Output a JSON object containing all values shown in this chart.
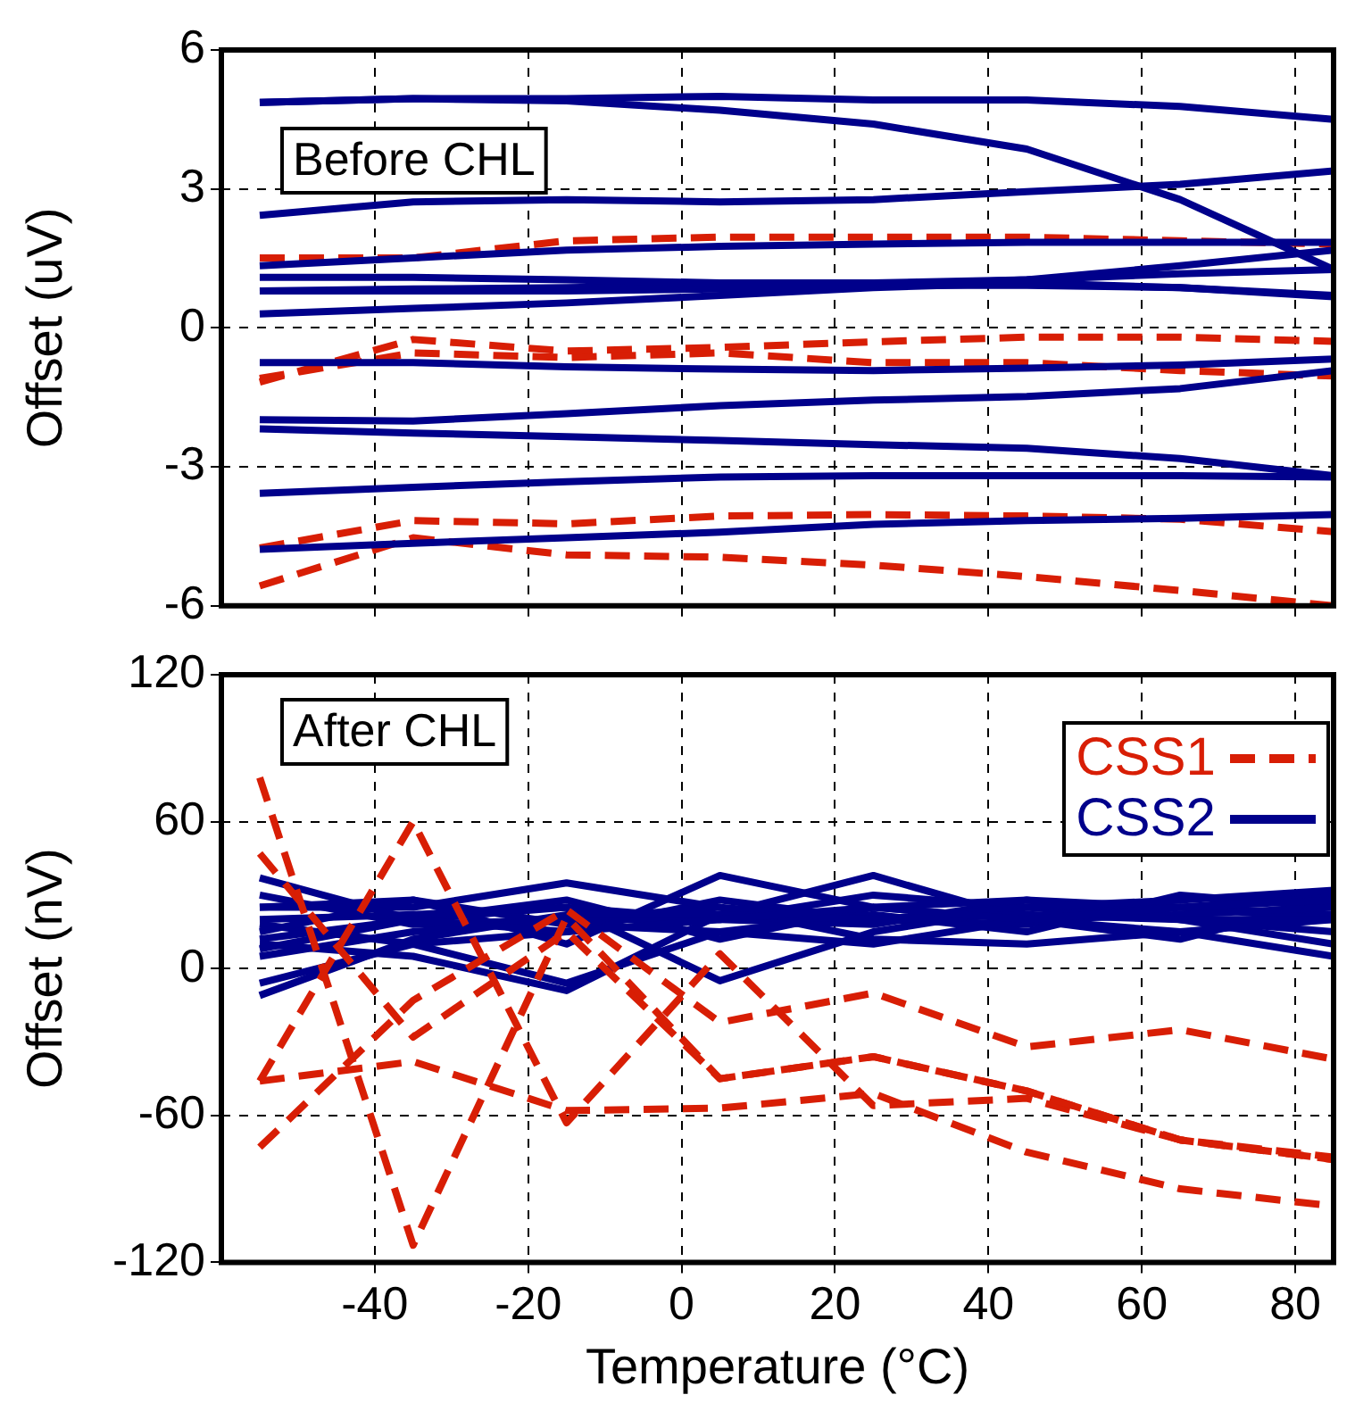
{
  "chart_data": [
    {
      "type": "line",
      "ylabel": "Offset (uV)",
      "annotations": [
        "Before CHL"
      ],
      "x": [
        -55,
        -35,
        -15,
        5,
        25,
        45,
        65,
        85
      ],
      "xlim": [
        -60,
        85
      ],
      "xticks": [
        -40,
        -20,
        0,
        20,
        40,
        60,
        80
      ],
      "ylim": [
        -6,
        6
      ],
      "yticks": [
        -6,
        -3,
        0,
        3,
        6
      ],
      "grid": true,
      "legend": false,
      "tick_labels": "y",
      "marker": "none",
      "series": [
        {
          "color": "#00008b",
          "line_style": "solid",
          "values": [
            4.87,
            4.95,
            4.95,
            5.0,
            4.92,
            4.92,
            4.78,
            4.5
          ]
        },
        {
          "color": "#00008b",
          "line_style": "solid",
          "values": [
            4.87,
            4.95,
            4.9,
            4.7,
            4.4,
            3.86,
            2.77,
            1.26
          ]
        },
        {
          "color": "#00008b",
          "line_style": "solid",
          "values": [
            2.43,
            2.72,
            2.77,
            2.72,
            2.77,
            2.94,
            3.1,
            3.39
          ]
        },
        {
          "color": "#00008b",
          "line_style": "solid",
          "values": [
            1.34,
            1.51,
            1.68,
            1.76,
            1.81,
            1.85,
            1.85,
            1.85
          ]
        },
        {
          "color": "#00008b",
          "line_style": "solid",
          "values": [
            1.09,
            1.09,
            1.04,
            0.97,
            0.97,
            1.04,
            1.17,
            1.26
          ]
        },
        {
          "color": "#00008b",
          "line_style": "solid",
          "values": [
            0.8,
            0.8,
            0.8,
            0.84,
            0.92,
            1.04,
            1.34,
            1.68
          ]
        },
        {
          "color": "#00008b",
          "line_style": "solid",
          "values": [
            0.3,
            0.42,
            0.54,
            0.7,
            0.87,
            0.97,
            0.87,
            0.67
          ]
        },
        {
          "color": "#00008b",
          "line_style": "solid",
          "values": [
            0.8,
            0.84,
            0.87,
            0.92,
            0.92,
            0.92,
            0.87,
            0.7
          ]
        },
        {
          "color": "#00008b",
          "line_style": "solid",
          "values": [
            -0.75,
            -0.75,
            -0.84,
            -0.89,
            -0.92,
            -0.87,
            -0.8,
            -0.67
          ]
        },
        {
          "color": "#00008b",
          "line_style": "solid",
          "values": [
            -1.98,
            -2.01,
            -1.85,
            -1.68,
            -1.56,
            -1.48,
            -1.31,
            -0.92
          ]
        },
        {
          "color": "#00008b",
          "line_style": "solid",
          "values": [
            -2.18,
            -2.27,
            -2.35,
            -2.43,
            -2.52,
            -2.6,
            -2.82,
            -3.19
          ]
        },
        {
          "color": "#00008b",
          "line_style": "solid",
          "values": [
            -3.57,
            -3.44,
            -3.32,
            -3.22,
            -3.19,
            -3.19,
            -3.19,
            -3.22
          ]
        },
        {
          "color": "#00008b",
          "line_style": "solid",
          "values": [
            -4.78,
            -4.65,
            -4.53,
            -4.41,
            -4.24,
            -4.16,
            -4.11,
            -4.03
          ]
        },
        {
          "color": "#d81e05",
          "line_style": "dashed",
          "values": [
            1.51,
            1.51,
            1.88,
            1.96,
            1.96,
            1.96,
            1.88,
            1.81
          ]
        },
        {
          "color": "#d81e05",
          "line_style": "dashed",
          "values": [
            -1.17,
            -0.25,
            -0.5,
            -0.42,
            -0.3,
            -0.2,
            -0.2,
            -0.29
          ]
        },
        {
          "color": "#d81e05",
          "line_style": "dashed",
          "values": [
            -1.09,
            -0.54,
            -0.64,
            -0.54,
            -0.75,
            -0.75,
            -0.92,
            -1.04
          ]
        },
        {
          "color": "#d81e05",
          "line_style": "dashed",
          "values": [
            -4.75,
            -4.16,
            -4.23,
            -4.06,
            -4.03,
            -4.06,
            -4.13,
            -4.4
          ]
        },
        {
          "color": "#d81e05",
          "line_style": "dashed",
          "values": [
            -5.57,
            -4.53,
            -4.9,
            -4.95,
            -5.12,
            -5.37,
            -5.67,
            -6.0
          ]
        }
      ]
    },
    {
      "type": "line",
      "xlabel": "Temperature (°C)",
      "ylabel": "Offset (nV)",
      "annotations": [
        "After CHL"
      ],
      "x": [
        -55,
        -35,
        -15,
        5,
        25,
        45,
        65,
        85
      ],
      "xlim": [
        -60,
        85
      ],
      "xticks": [
        -40,
        -20,
        0,
        20,
        40,
        60,
        80
      ],
      "ylim": [
        -120,
        120
      ],
      "yticks": [
        -120,
        -60,
        0,
        60,
        120
      ],
      "grid": true,
      "legend": "top right",
      "marker": "none",
      "series": [
        {
          "name": "CSS1",
          "color": "#d81e05",
          "line_style": "dashed",
          "values": [
            78,
            -113,
            21,
            -45,
            -36,
            -50,
            -70,
            -78
          ]
        },
        {
          "color": "#d81e05",
          "line_style": "dashed",
          "values": [
            47,
            -28,
            15,
            -45,
            -36,
            -50,
            -70,
            -78
          ]
        },
        {
          "color": "#d81e05",
          "line_style": "dashed",
          "values": [
            -73,
            -13,
            24,
            -22,
            -10,
            -32,
            -25,
            -37
          ]
        },
        {
          "color": "#d81e05",
          "line_style": "dashed",
          "values": [
            -46,
            60,
            -63,
            6,
            -56,
            -53,
            -70,
            -77
          ]
        },
        {
          "color": "#d81e05",
          "line_style": "dashed",
          "values": [
            -46,
            -38,
            -58,
            -57,
            -51,
            -75,
            -90,
            -97
          ]
        },
        {
          "name": "CSS2",
          "color": "#00008b",
          "line_style": "solid",
          "values": [
            37,
            20,
            15,
            20,
            25,
            20,
            25,
            28
          ]
        },
        {
          "color": "#00008b",
          "line_style": "solid",
          "values": [
            -11,
            12,
            22,
            22,
            20,
            22,
            20,
            20
          ]
        },
        {
          "color": "#00008b",
          "line_style": "solid",
          "values": [
            -6,
            10,
            -6,
            15,
            10,
            20,
            15,
            20
          ]
        },
        {
          "color": "#00008b",
          "line_style": "solid",
          "values": [
            25,
            25,
            35,
            25,
            20,
            25,
            28,
            32
          ]
        },
        {
          "color": "#00008b",
          "line_style": "solid",
          "values": [
            15,
            28,
            10,
            38,
            25,
            28,
            25,
            30
          ]
        },
        {
          "color": "#00008b",
          "line_style": "solid",
          "values": [
            10,
            5,
            -9,
            22,
            38,
            20,
            22,
            25
          ]
        },
        {
          "color": "#00008b",
          "line_style": "solid",
          "values": [
            20,
            22,
            25,
            -5,
            15,
            25,
            20,
            10
          ]
        },
        {
          "color": "#00008b",
          "line_style": "solid",
          "values": [
            5,
            15,
            20,
            25,
            12,
            10,
            15,
            5
          ]
        },
        {
          "color": "#00008b",
          "line_style": "solid",
          "values": [
            30,
            18,
            20,
            20,
            30,
            25,
            25,
            20
          ]
        },
        {
          "color": "#00008b",
          "line_style": "solid",
          "values": [
            12,
            20,
            25,
            20,
            18,
            28,
            20,
            15
          ]
        },
        {
          "color": "#00008b",
          "line_style": "solid",
          "values": [
            25,
            28,
            18,
            15,
            22,
            15,
            30,
            25
          ]
        },
        {
          "color": "#00008b",
          "line_style": "solid",
          "values": [
            8,
            20,
            28,
            12,
            25,
            20,
            12,
            28
          ]
        },
        {
          "color": "#00008b",
          "line_style": "solid",
          "values": [
            18,
            10,
            15,
            28,
            20,
            18,
            25,
            22
          ]
        }
      ]
    }
  ]
}
